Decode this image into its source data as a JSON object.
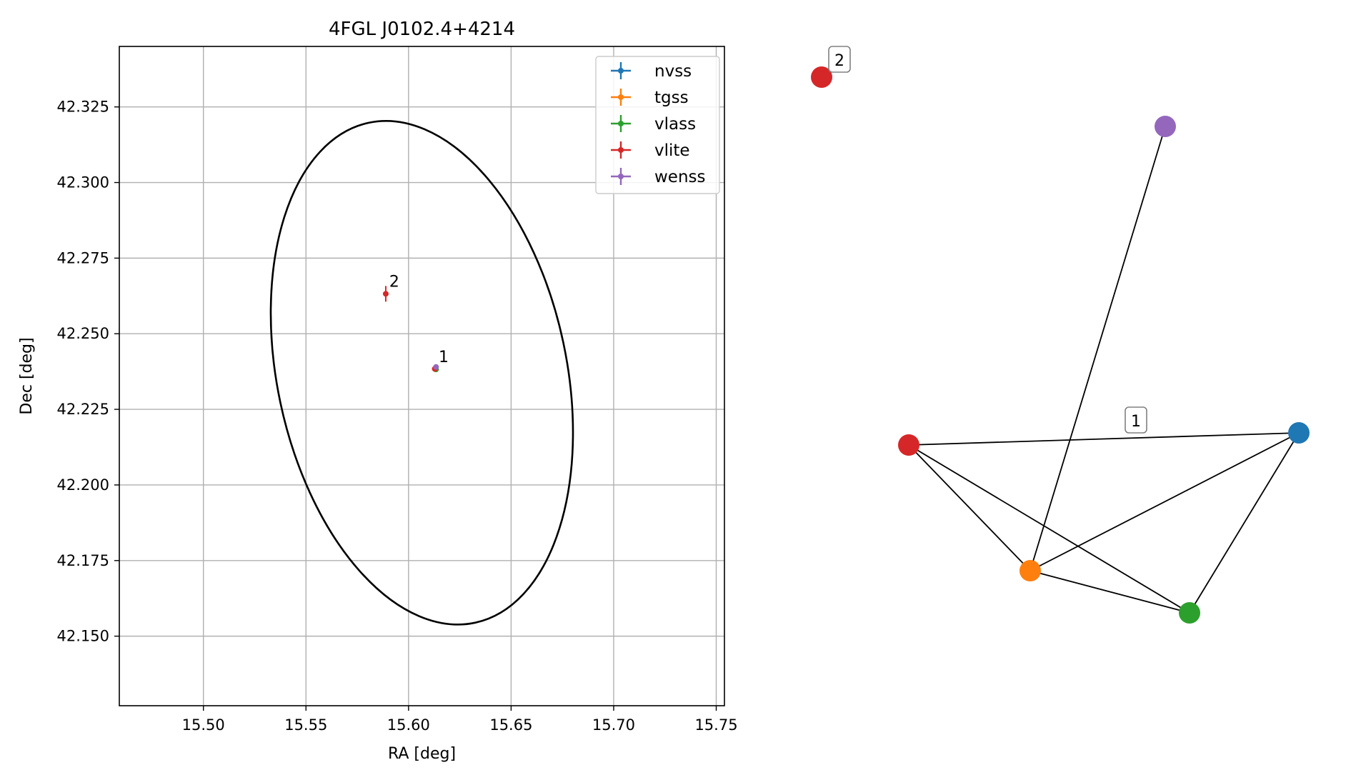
{
  "chart_data": [
    {
      "type": "scatter",
      "title": "4FGL J0102.4+4214",
      "xlabel": "RA [deg]",
      "ylabel": "Dec [deg]",
      "xlim": [
        15.459,
        15.754
      ],
      "ylim": [
        42.127,
        42.345
      ],
      "xticks": [
        "15.50",
        "15.55",
        "15.60",
        "15.65",
        "15.70",
        "15.75"
      ],
      "yticks": [
        "42.150",
        "42.175",
        "42.200",
        "42.225",
        "42.250",
        "42.275",
        "42.300",
        "42.325"
      ],
      "grid": true,
      "legend_position": "upper-right",
      "series": [
        {
          "name": "nvss",
          "color": "#1f77b4",
          "points": [
            {
              "x": 15.6133,
              "y": 42.2385,
              "xerr": 0.0004,
              "yerr": 0.0006
            }
          ]
        },
        {
          "name": "tgss",
          "color": "#ff7f0e",
          "points": [
            {
              "x": 15.613,
              "y": 42.2383,
              "xerr": 0.0004,
              "yerr": 0.0006
            }
          ]
        },
        {
          "name": "vlass",
          "color": "#2ca02c",
          "points": [
            {
              "x": 15.6134,
              "y": 42.2382,
              "xerr": 0.0003,
              "yerr": 0.0004
            }
          ]
        },
        {
          "name": "vlite",
          "color": "#d62728",
          "points": [
            {
              "x": 15.6128,
              "y": 42.2384,
              "xerr": 0.0005,
              "yerr": 0.0008
            },
            {
              "x": 15.5889,
              "y": 42.2632,
              "xerr": 0.0009,
              "yerr": 0.0026
            }
          ]
        },
        {
          "name": "wenss",
          "color": "#9467bd",
          "points": [
            {
              "x": 15.6134,
              "y": 42.239,
              "xerr": 0.0004,
              "yerr": 0.0007
            }
          ]
        }
      ],
      "ellipse": {
        "center_ra": 15.6065,
        "center_dec": 42.2371,
        "semi_major": 0.0705,
        "semi_minor": 0.0845,
        "color": "#000000"
      },
      "annotations": [
        {
          "text": "1",
          "x": 15.6147,
          "y": 42.2406
        },
        {
          "text": "2",
          "x": 15.5906,
          "y": 42.2655
        }
      ]
    },
    {
      "type": "network",
      "nodes": [
        {
          "id": "nvss",
          "color": "#1f77b4"
        },
        {
          "id": "tgss",
          "color": "#ff7f0e"
        },
        {
          "id": "vlass",
          "color": "#2ca02c"
        },
        {
          "id": "vlite-1",
          "color": "#d62728"
        },
        {
          "id": "vlite-2",
          "color": "#d62728"
        },
        {
          "id": "wenss",
          "color": "#9467bd"
        }
      ],
      "edges": [
        [
          "vlite-1",
          "nvss"
        ],
        [
          "vlite-1",
          "tgss"
        ],
        [
          "vlite-1",
          "vlass"
        ],
        [
          "tgss",
          "nvss"
        ],
        [
          "tgss",
          "vlass"
        ],
        [
          "vlass",
          "nvss"
        ],
        [
          "tgss",
          "wenss"
        ]
      ],
      "labels": [
        {
          "text": "1",
          "attach": "vlite-1-nvss-edge"
        },
        {
          "text": "2",
          "attach": "vlite-2"
        }
      ]
    }
  ]
}
